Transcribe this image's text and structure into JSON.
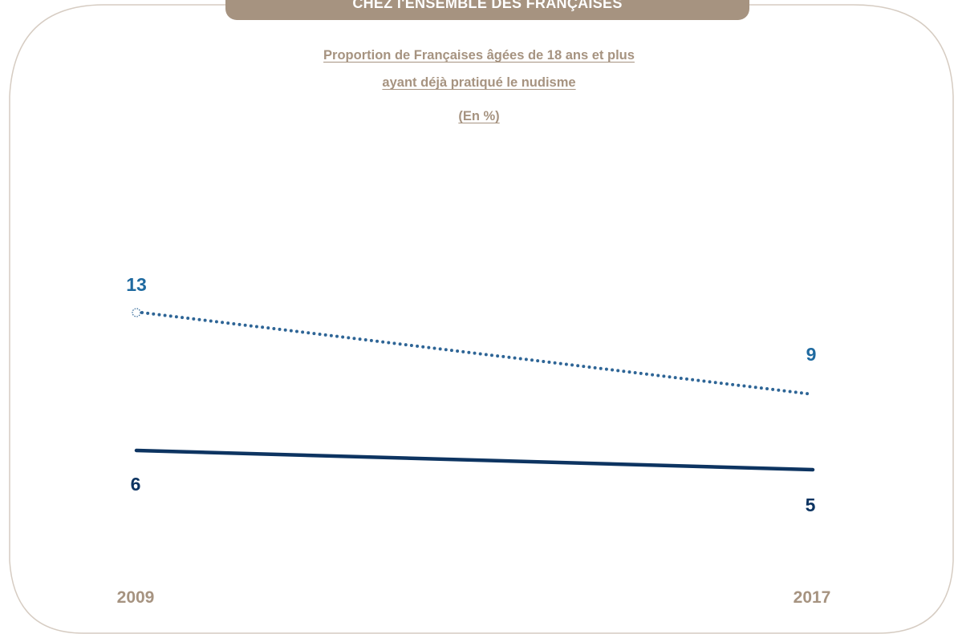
{
  "colors": {
    "frame": "#d6ccc2",
    "accent": "#a69380",
    "series_dotted": "#2e6596",
    "series_solid": "#0d3461",
    "value_label_dotted": "#1f6aa0"
  },
  "header": {
    "banner": "CHEZ l'ENSEMBLE DES FRANÇAISES"
  },
  "chart_data": {
    "type": "line",
    "title": "Proportion de Françaises âgées de 18 ans et plus",
    "subtitle": "ayant déjà pratiqué le nudisme",
    "unit_label": "(En %)",
    "categories": [
      "2009",
      "2017"
    ],
    "series": [
      {
        "style": "dotted",
        "values": [
          13,
          9
        ]
      },
      {
        "style": "solid",
        "values": [
          6,
          5
        ]
      }
    ],
    "grid": false,
    "legend": "none"
  }
}
